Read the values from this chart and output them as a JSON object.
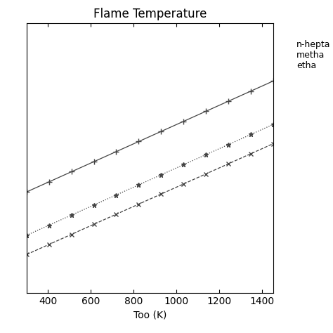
{
  "title": "Flame Temperature",
  "xlabel": "Too (K)",
  "ylabel": "",
  "xmin": 300,
  "xmax": 1450,
  "xticks": [
    400,
    600,
    800,
    1000,
    1200,
    1400
  ],
  "lines": [
    {
      "label": "n-hepta",
      "style": "-",
      "marker": "+",
      "marker_size": 6,
      "color": "#444444",
      "intercept": 2250,
      "slope": 1.0
    },
    {
      "label": "metha",
      "style": ":",
      "marker": "*",
      "marker_size": 5,
      "color": "#444444",
      "intercept": 1800,
      "slope": 1.0
    },
    {
      "label": "etha",
      "style": "--",
      "marker": "x",
      "marker_size": 5,
      "color": "#444444",
      "intercept": 1600,
      "slope": 1.0
    }
  ],
  "ymin": 1500,
  "ymax": 4300,
  "background_color": "#ffffff",
  "title_fontsize": 12,
  "label_fontsize": 10,
  "tick_labelsize": 10,
  "n_markers": 12,
  "legend_text": "n-hepta\nmetha\netha",
  "legend_fontsize": 9
}
